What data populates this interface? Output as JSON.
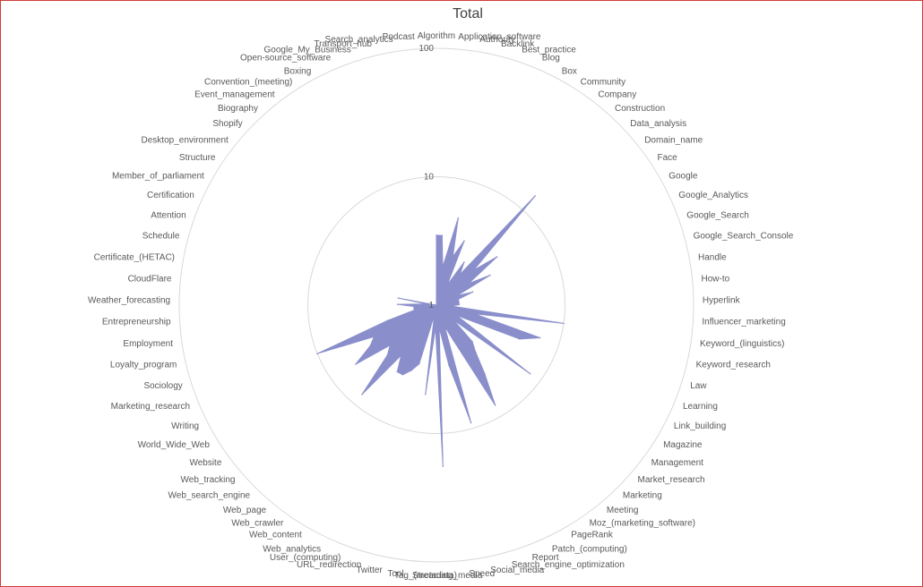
{
  "chart_data": {
    "type": "radar",
    "title": "Total",
    "scale": "log",
    "range": [
      1,
      100
    ],
    "ticks": [
      1,
      10,
      100
    ],
    "grid": true,
    "fill_color": "#8a8fcb",
    "grid_color": "#d9d9d9",
    "categories": [
      "Algorithm",
      "Application_software",
      "Authority",
      "Backlink",
      "Best_practice",
      "Blog",
      "Box",
      "Community",
      "Company",
      "Construction",
      "Data_analysis",
      "Domain_name",
      "Face",
      "Google",
      "Google_Analytics",
      "Google_Search",
      "Google_Search_Console",
      "Handle",
      "How-to",
      "Hyperlink",
      "Influencer_marketing",
      "Keyword_(linguistics)",
      "Keyword_research",
      "Law",
      "Learning",
      "Link_building",
      "Magazine",
      "Management",
      "Market_research",
      "Marketing",
      "Meeting",
      "Moz_(marketing_software)",
      "PageRank",
      "Patch_(computing)",
      "Report",
      "Search_engine_optimization",
      "Social_media",
      "Speed",
      "Streaming_media",
      "Tag_(metadata)",
      "Tool",
      "Twitter",
      "URL_redirection",
      "User_(computing)",
      "Web_analytics",
      "Web_content",
      "Web_crawler",
      "Web_page",
      "Web_search_engine",
      "Web_tracking",
      "Website",
      "World_Wide_Web",
      "Writing",
      "Marketing_research",
      "Sociology",
      "Loyalty_program",
      "Employment",
      "Entrepreneurship",
      "Weather_forecasting",
      "CloudFlare",
      "Certificate_(HETAC)",
      "Schedule",
      "Attention",
      "Certification",
      "Member_of_parliament",
      "Structure",
      "Desktop_environment",
      "Shopify",
      "Biography",
      "Event_management",
      "Convention_(meeting)",
      "Boxing",
      "Open-source_software",
      "Google_My_Business",
      "Transport_hub",
      "Search_analytics",
      "Podcast"
    ],
    "values": [
      3.5,
      3.5,
      2.0,
      5.0,
      2.5,
      3.5,
      1.5,
      2.5,
      2.0,
      14.0,
      2.5,
      4.0,
      2.0,
      3.0,
      1.5,
      2.0,
      1.5,
      1.5,
      1.5,
      1.5,
      1.3,
      10.0,
      2.0,
      7.0,
      5.0,
      1.5,
      2.0,
      8.0,
      1.5,
      2.5,
      3.0,
      4.5,
      8.0,
      2.0,
      1.5,
      9.0,
      3.0,
      1.5,
      18.0,
      1.5,
      5.0,
      1.2,
      3.0,
      3.5,
      4.0,
      4.0,
      3.0,
      8.0,
      3.5,
      3.0,
      6.0,
      4.0,
      3.5,
      10.0,
      2.5,
      1.5,
      1.5,
      1.5,
      2.0,
      1.2,
      2.0,
      1.0,
      1.0,
      1.0,
      1.0,
      1.0,
      1.0,
      1.0,
      1.0,
      1.0,
      1.0,
      1.0,
      1.0,
      1.0,
      1.0,
      1.0,
      1.0
    ]
  }
}
